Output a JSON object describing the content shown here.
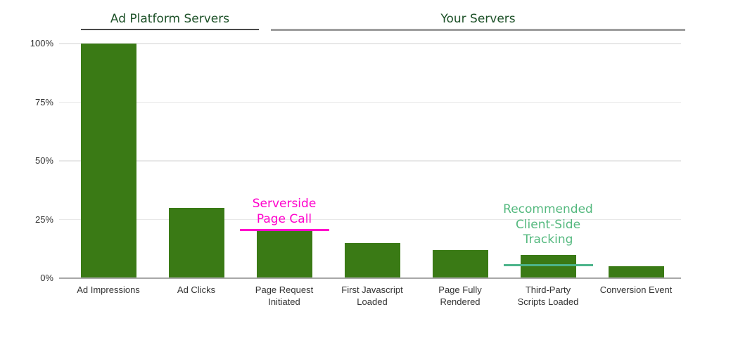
{
  "page": {
    "background": "#ffffff"
  },
  "group_headers": [
    {
      "label": "Ad Platform Servers",
      "text_color": "#1d5128",
      "underline_color": "#4a4a4a"
    },
    {
      "label": "Your Servers",
      "text_color": "#1d5128",
      "underline_color": "#9e9e9e"
    }
  ],
  "chart_data": {
    "type": "bar",
    "title": "",
    "xlabel": "",
    "ylabel": "",
    "categories": [
      "Ad Impressions",
      "Ad Clicks",
      "Page Request\nInitiated",
      "First Javascript\nLoaded",
      "Page Fully\nRendered",
      "Third-Party\nScripts Loaded",
      "Conversion Event"
    ],
    "values": [
      100,
      30,
      20,
      15,
      12,
      10,
      5
    ],
    "unit": "%",
    "ylim": [
      0,
      100
    ],
    "y_ticks": [
      0,
      25,
      50,
      75,
      100
    ],
    "y_tick_labels": [
      "0%",
      "25%",
      "50%",
      "75%",
      "100%"
    ],
    "grid": true,
    "legend": false,
    "bar_color": "#3a7a15",
    "group_spans": [
      {
        "label": "Ad Platform Servers",
        "categories": [
          "Ad Impressions",
          "Ad Clicks"
        ]
      },
      {
        "label": "Your Servers",
        "categories": [
          "Page Request Initiated",
          "First Javascript Loaded",
          "Page Fully Rendered",
          "Third-Party Scripts Loaded",
          "Conversion Event"
        ]
      }
    ]
  },
  "annotations": [
    {
      "text": "Serverside\nPage Call",
      "color": "#ff00cc",
      "target_category_index": 2,
      "marker_line_value": 20.5,
      "marker_line_color": "#ff00cc"
    },
    {
      "text": "Recommended\nClient-Side\nTracking",
      "color": "#55b97f",
      "target_category_index": 5,
      "marker_line_value": 5.5,
      "marker_line_color": "#4cb48a"
    }
  ],
  "axis": {
    "text_color": "#333333",
    "grid_color": "#e8e8e8",
    "baseline_color": "#a8a8a8"
  }
}
